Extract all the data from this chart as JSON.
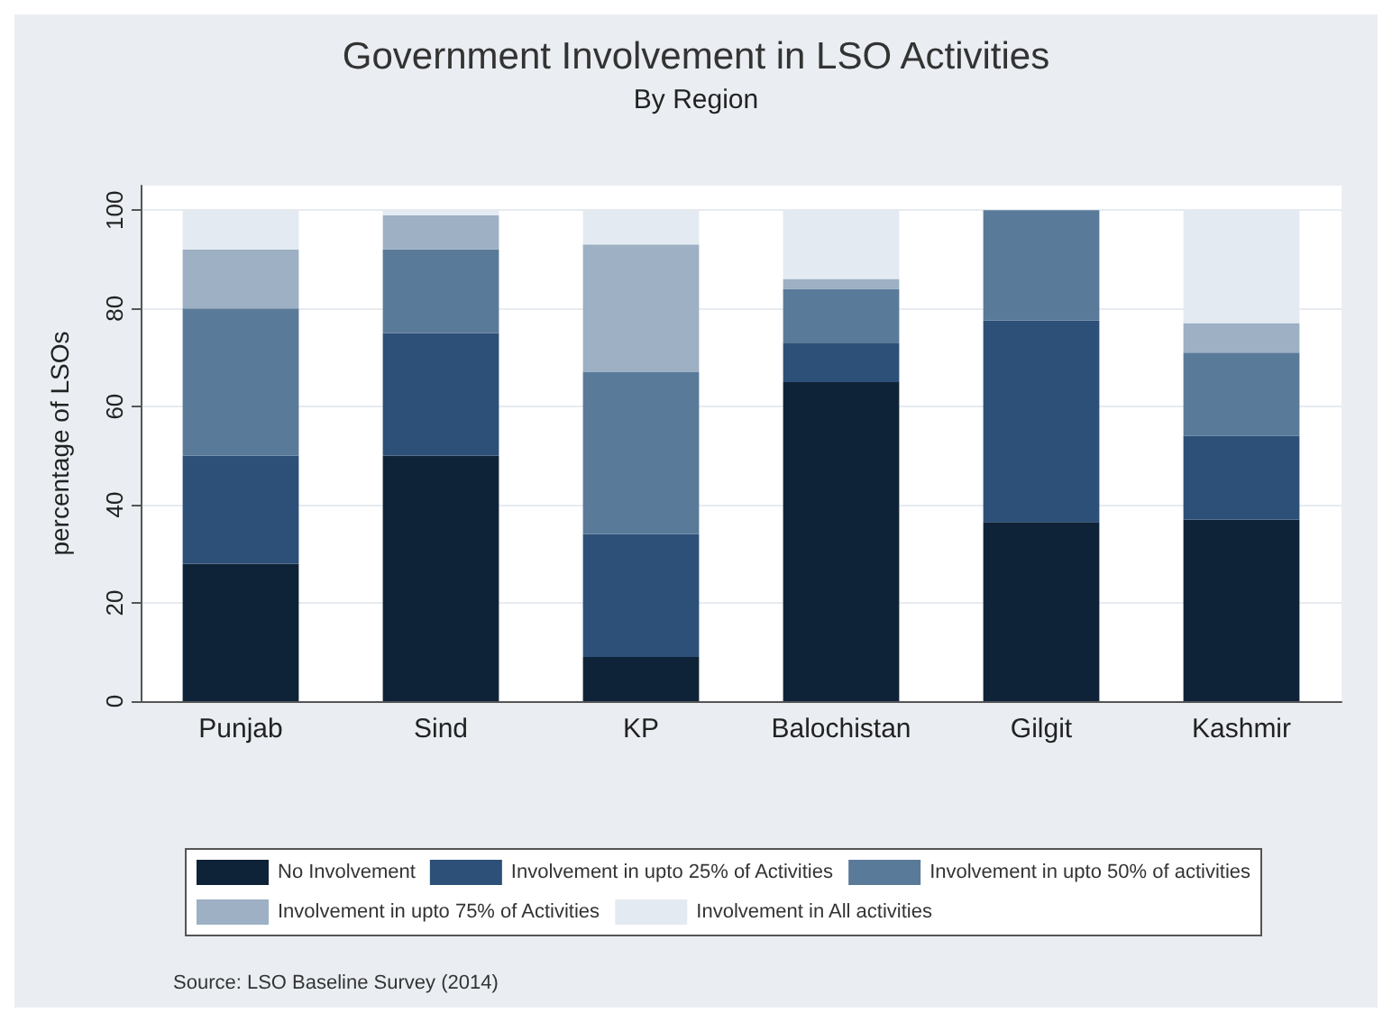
{
  "chart_data": {
    "type": "bar",
    "title": "Government Involvement in LSO Activities",
    "subtitle": "By Region",
    "ylabel": "percentage of LSOs",
    "categories": [
      "Punjab",
      "Sind",
      "KP",
      "Balochistan",
      "Gilgit",
      "Kashmir"
    ],
    "stacked": true,
    "series": [
      {
        "name": "No Involvement",
        "color": "#0f2338",
        "values": [
          28,
          50,
          9,
          65,
          36.5,
          37
        ]
      },
      {
        "name": "Involvement in upto 25% of Activities",
        "color": "#2c5078",
        "values": [
          22,
          25,
          25,
          8,
          41,
          17
        ]
      },
      {
        "name": "Involvement in upto 50% of activities",
        "color": "#5a7a99",
        "values": [
          30,
          17,
          33,
          11,
          22.5,
          17
        ]
      },
      {
        "name": "Involvement in upto 75% of Activities",
        "color": "#9db0c4",
        "values": [
          12,
          7,
          26,
          2,
          0,
          6
        ]
      },
      {
        "name": "Involvement in All activities",
        "color": "#e4eaf2",
        "values": [
          8,
          1,
          7,
          14,
          0,
          23
        ]
      }
    ],
    "ylim": [
      0,
      105
    ],
    "yticks": [
      0,
      20,
      40,
      60,
      80,
      100
    ],
    "grid": "y",
    "legend": "bottom",
    "annotations": [
      "Source: LSO Baseline Survey (2014)"
    ]
  }
}
